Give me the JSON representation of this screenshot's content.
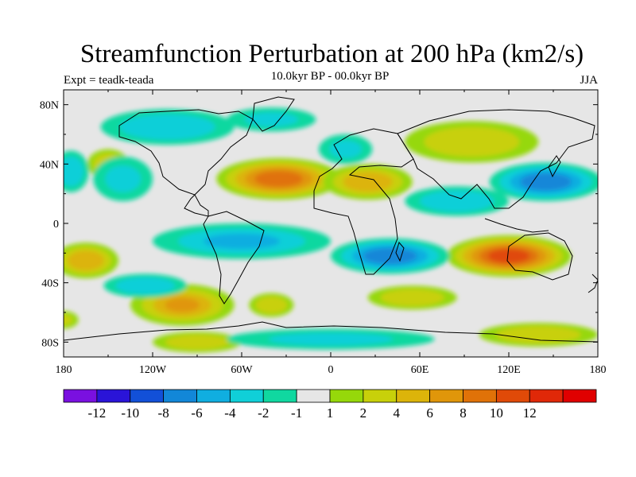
{
  "header": {
    "title": "Streamfunction Perturbation at 200 hPa (km2/s)",
    "subtitle": "10.0kyr BP - 00.0kyr BP",
    "left_label": "Expt = teadk-teada",
    "right_label": "JJA"
  },
  "axes": {
    "lat_labels": [
      "80N",
      "40N",
      "0",
      "40S",
      "80S"
    ],
    "lat_values": [
      80,
      40,
      0,
      -40,
      -80
    ],
    "lon_labels": [
      "180",
      "120W",
      "60W",
      "0",
      "60E",
      "120E",
      "180"
    ],
    "lon_values": [
      -180,
      -120,
      -60,
      0,
      60,
      120,
      180
    ],
    "lat_range": [
      -90,
      90
    ],
    "lon_range": [
      -180,
      180
    ]
  },
  "colorbar": {
    "colors": [
      "#7a10e0",
      "#2a14d8",
      "#1250d8",
      "#1287d8",
      "#10aee0",
      "#10cfd8",
      "#10d8a0",
      "#e6e6e6",
      "#96d80a",
      "#c8d00a",
      "#dcb40a",
      "#e0960a",
      "#e07208",
      "#e04a08",
      "#e02808",
      "#e00000"
    ],
    "labels": [
      "-12",
      "-10",
      "-8",
      "-6",
      "-4",
      "-2",
      "-1",
      "1",
      "2",
      "4",
      "6",
      "8",
      "10",
      "12"
    ]
  },
  "field": {
    "background": "#e6e6e6",
    "features": [
      {
        "lon": -165,
        "lat": -25,
        "value": 5.5,
        "rlon": 22,
        "rlat": 12
      },
      {
        "lon": -100,
        "lat": -55,
        "value": 6,
        "rlon": 35,
        "rlat": 14
      },
      {
        "lon": -35,
        "lat": 30,
        "value": 8.5,
        "rlon": 42,
        "rlat": 14
      },
      {
        "lon": 25,
        "lat": 28,
        "value": 4.5,
        "rlon": 30,
        "rlat": 12
      },
      {
        "lon": 95,
        "lat": 55,
        "value": 3.5,
        "rlon": 45,
        "rlat": 14
      },
      {
        "lon": 120,
        "lat": -22,
        "value": 10.5,
        "rlon": 42,
        "rlat": 14
      },
      {
        "lon": 140,
        "lat": -75,
        "value": 2.5,
        "rlon": 40,
        "rlat": 8
      },
      {
        "lon": -150,
        "lat": 40,
        "value": 2.5,
        "rlon": 14,
        "rlat": 10
      },
      {
        "lon": -90,
        "lat": -80,
        "value": 2.2,
        "rlon": 30,
        "rlat": 7
      },
      {
        "lon": -180,
        "lat": -65,
        "value": 2,
        "rlon": 10,
        "rlat": 6
      },
      {
        "lon": -40,
        "lat": -55,
        "value": 2.2,
        "rlon": 15,
        "rlat": 8
      },
      {
        "lon": 55,
        "lat": -50,
        "value": 2.2,
        "rlon": 30,
        "rlat": 8
      },
      {
        "lon": -140,
        "lat": 30,
        "value": -2,
        "rlon": 20,
        "rlat": 15
      },
      {
        "lon": -110,
        "lat": 65,
        "value": -3,
        "rlon": 45,
        "rlat": 12
      },
      {
        "lon": -60,
        "lat": -12,
        "value": -4,
        "rlon": 60,
        "rlat": 12
      },
      {
        "lon": 40,
        "lat": -22,
        "value": -7,
        "rlon": 40,
        "rlat": 12
      },
      {
        "lon": 145,
        "lat": 28,
        "value": -7.5,
        "rlon": 38,
        "rlat": 13
      },
      {
        "lon": 85,
        "lat": 15,
        "value": -3,
        "rlon": 35,
        "rlat": 10
      },
      {
        "lon": -175,
        "lat": 35,
        "value": -3,
        "rlon": 12,
        "rlat": 14
      },
      {
        "lon": -125,
        "lat": -42,
        "value": -2.5,
        "rlon": 28,
        "rlat": 8
      },
      {
        "lon": 10,
        "lat": 50,
        "value": -2,
        "rlon": 18,
        "rlat": 10
      },
      {
        "lon": -40,
        "lat": 70,
        "value": -2,
        "rlon": 30,
        "rlat": 8
      },
      {
        "lon": 0,
        "lat": -78,
        "value": -2,
        "rlon": 70,
        "rlat": 7
      }
    ]
  }
}
